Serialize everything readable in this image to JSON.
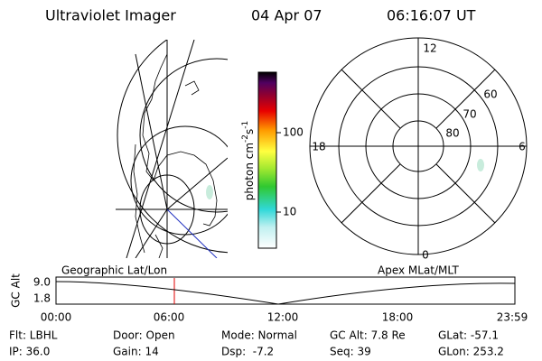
{
  "header": {
    "instrument": "Ultraviolet Imager",
    "date": "04 Apr 07",
    "time": "06:16:07 UT"
  },
  "colorbar": {
    "label": {
      "base": "photon cm",
      "exp1": "-2",
      "unit": "s",
      "exp2": "-1"
    },
    "ticks": [
      "100",
      "10"
    ]
  },
  "polar": {
    "hour_labels": [
      "12",
      "18",
      "6",
      "0"
    ],
    "lat_labels": [
      "60",
      "70",
      "80"
    ]
  },
  "timeline": {
    "left_label": "Geographic Lat/Lon",
    "right_label": "Apex MLat/MLT",
    "axis_label": "GC Alt",
    "y_labels": [
      "9.0",
      "1.8"
    ],
    "time_labels": [
      "00:00",
      "06:00",
      "12:00",
      "18:00",
      "23:59"
    ]
  },
  "info": {
    "rows": [
      [
        "Flt: LBHL",
        "Door: Open",
        "Mode: Normal",
        "GC Alt: 7.8 Re",
        "GLat: -57.1"
      ],
      [
        "IP: 36.0",
        "Gain: 14",
        "Dsp:  -7.2",
        "Seq: 39",
        "GLon: 253.2"
      ]
    ]
  }
}
